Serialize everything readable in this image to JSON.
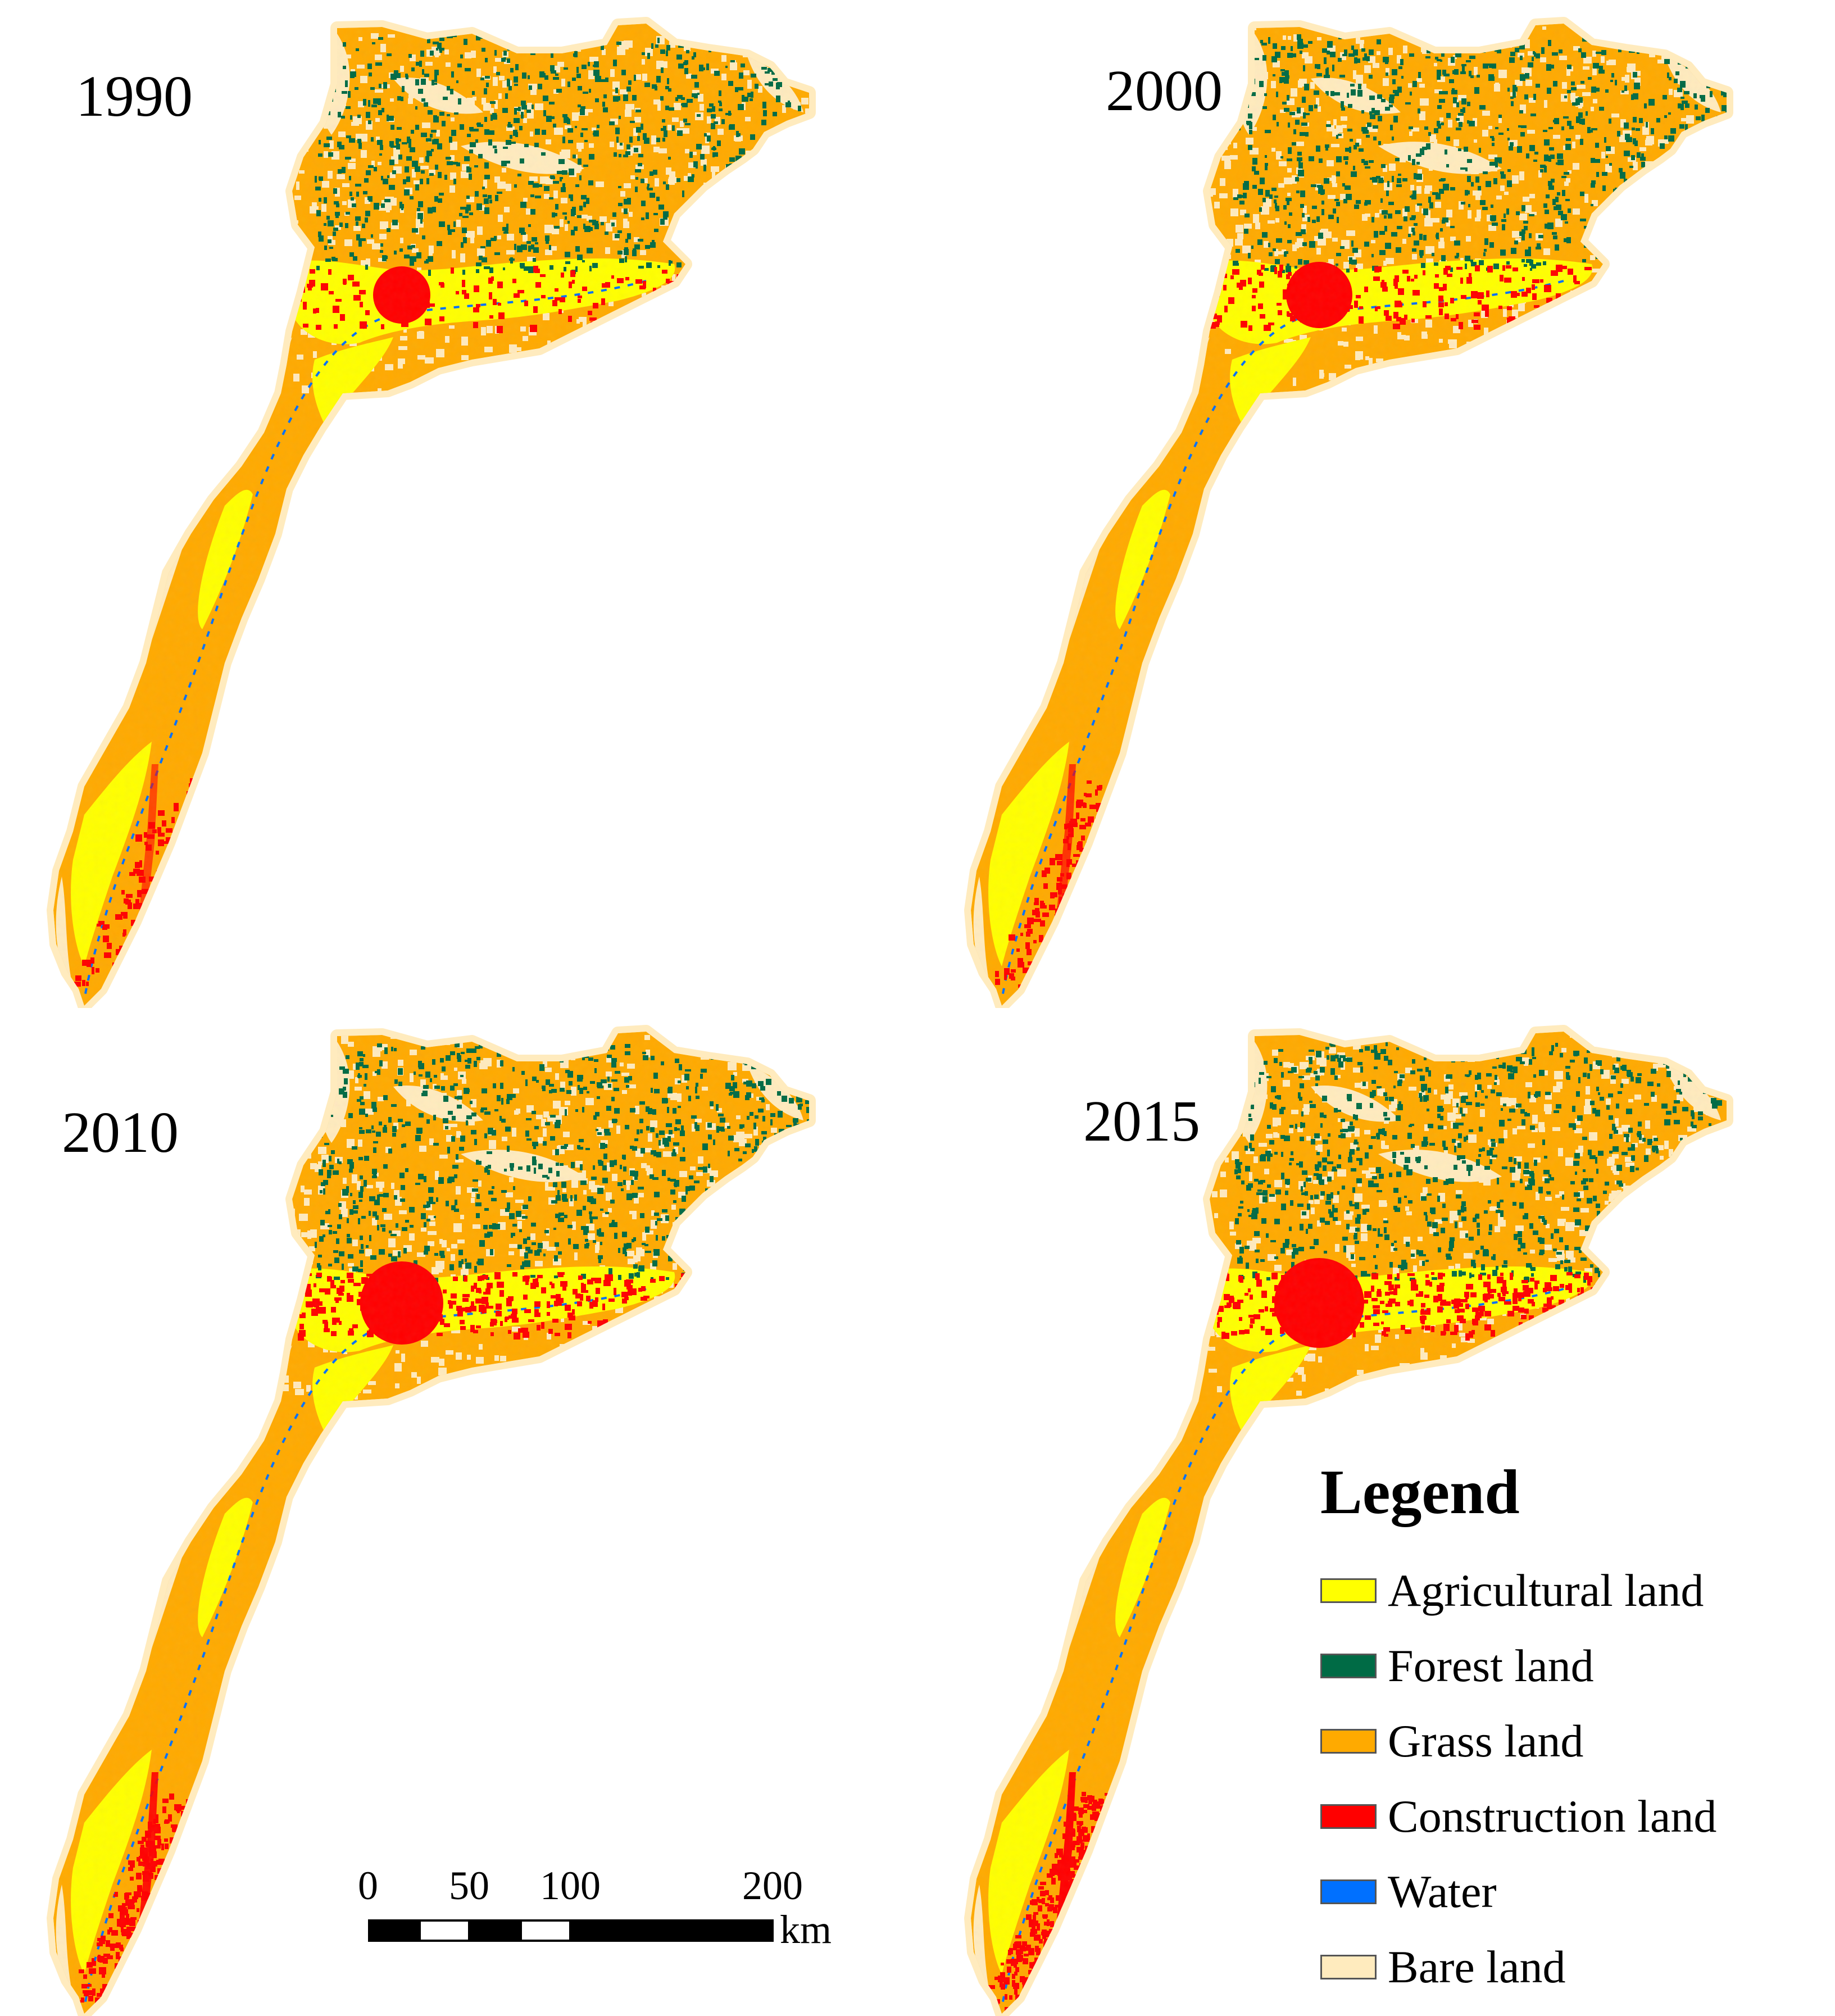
{
  "panels": [
    {
      "id": "p1990",
      "year": "1990"
    },
    {
      "id": "p2000",
      "year": "2000"
    },
    {
      "id": "p2010",
      "year": "2010"
    },
    {
      "id": "p2015",
      "year": "2015"
    }
  ],
  "legend": {
    "title": "Legend",
    "items": [
      {
        "label": "Agricultural land",
        "color": "#ffff00"
      },
      {
        "label": "Forest land",
        "color": "#006b45"
      },
      {
        "label": "Grass land",
        "color": "#ffaa00"
      },
      {
        "label": "Construction land",
        "color": "#ff0000"
      },
      {
        "label": "Water",
        "color": "#0070ff"
      },
      {
        "label": "Bare land",
        "color": "#ffebbe"
      }
    ]
  },
  "scale_bar": {
    "ticks": [
      "0",
      "50",
      "100",
      "200"
    ],
    "unit": "km"
  },
  "colors": {
    "agricultural": "#ffff00",
    "forest": "#006b45",
    "grass": "#ffaa00",
    "construction": "#ff0000",
    "water": "#0070ff",
    "bare": "#ffebbe"
  },
  "urban_growth_by_panel": [
    0.3,
    0.5,
    0.85,
    1.0
  ]
}
